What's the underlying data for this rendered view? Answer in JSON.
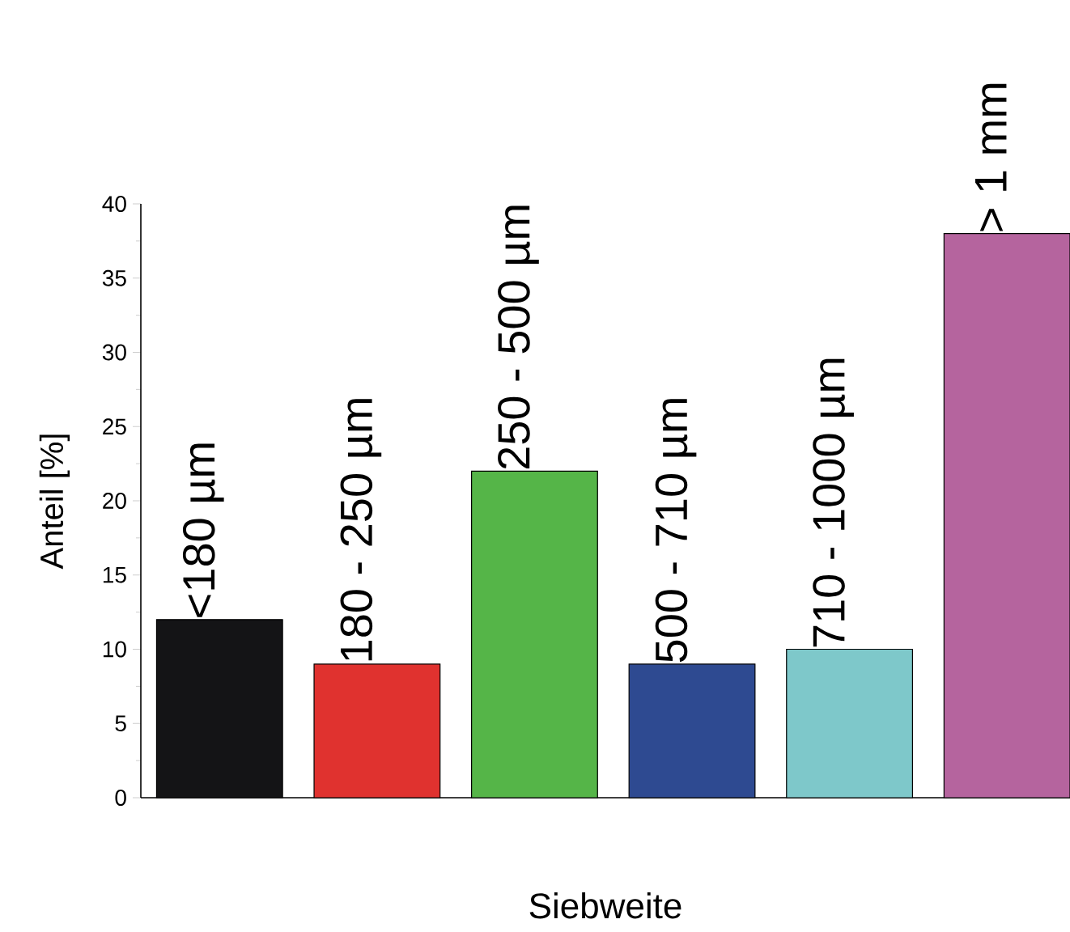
{
  "chart_data": {
    "type": "bar",
    "xlabel": "Siebweite",
    "ylabel": "Anteil [%]",
    "categories": [
      "<180 µm",
      "180 - 250 µm",
      "250 - 500 µm",
      "500 - 710 µm",
      "710 - 1000 µm",
      "> 1 mm"
    ],
    "values": [
      12,
      9,
      22,
      9,
      10,
      38
    ],
    "colors": [
      "#141416",
      "#e0322f",
      "#55b548",
      "#2e4a91",
      "#7ec8ca",
      "#b5649e"
    ],
    "ylim": [
      0,
      40
    ],
    "yticks": [
      0,
      5,
      10,
      15,
      20,
      25,
      30,
      35,
      40
    ]
  }
}
